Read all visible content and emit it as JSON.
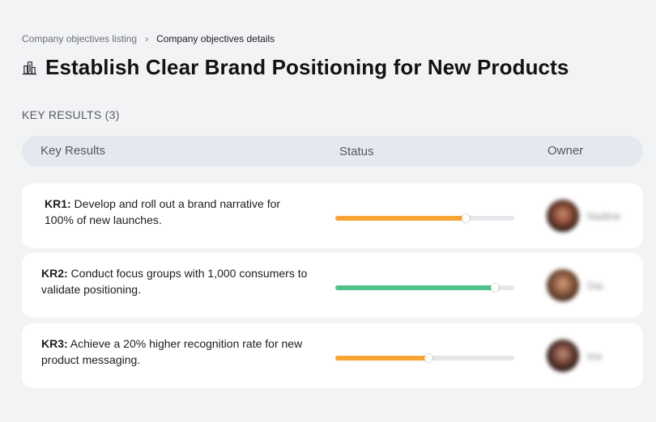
{
  "breadcrumb": {
    "parent": "Company objectives listing",
    "separator": "›",
    "current": "Company objectives details"
  },
  "objective": {
    "title": "Establish Clear Brand Positioning for New Products",
    "icon": "building-icon"
  },
  "key_results_label": "KEY RESULTS (3)",
  "table": {
    "columns": [
      "Key Results",
      "Status",
      "Owner"
    ],
    "rows": [
      {
        "code": "KR1:",
        "text": " Develop and roll out a brand narrative for 100% of new launches.",
        "progress": 0.73,
        "status_color": "#f9a533",
        "owner": "Nadine"
      },
      {
        "code": "KR2:",
        "text": " Conduct focus groups with 1,000 consumers to validate positioning.",
        "progress": 0.89,
        "status_color": "#52c28a",
        "owner": "Dai"
      },
      {
        "code": "KR3:",
        "text": " Achieve a 20% higher recognition rate for new product messaging.",
        "progress": 0.52,
        "status_color": "#f9a533",
        "owner": "Ina"
      }
    ]
  }
}
